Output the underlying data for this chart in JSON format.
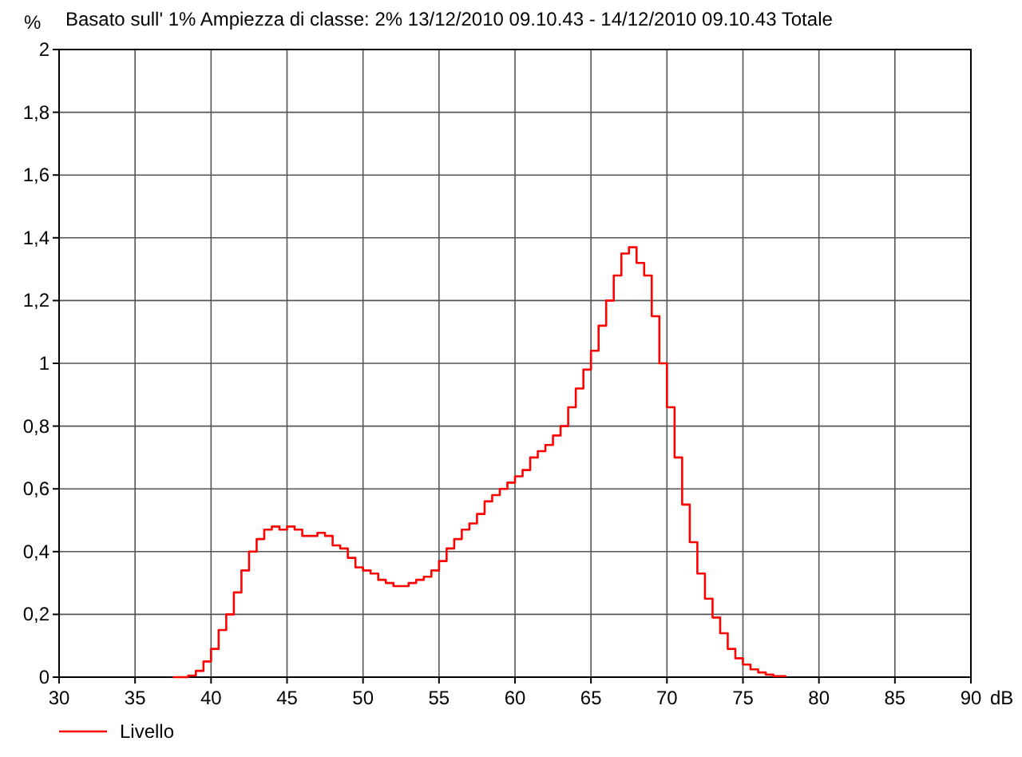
{
  "chart_data": {
    "type": "step",
    "title": "Basato sull' 1%   Ampiezza di classe: 2%  13/12/2010 09.10.43 - 14/12/2010 09.10.43  Totale",
    "xlabel": "dB",
    "ylabel": "%",
    "xlim": [
      30,
      90
    ],
    "xticks": [
      30,
      35,
      40,
      45,
      50,
      55,
      60,
      65,
      70,
      75,
      80,
      85,
      90
    ],
    "ylim": [
      0,
      2
    ],
    "yticks": [
      0,
      {
        "value": 0.2,
        "label": "0,2"
      },
      {
        "value": 0.4,
        "label": "0,4"
      },
      {
        "value": 0.6,
        "label": "0,6"
      },
      {
        "value": 0.8,
        "label": "0,8"
      },
      1,
      {
        "value": 1.2,
        "label": "1,2"
      },
      {
        "value": 1.4,
        "label": "1,4"
      },
      {
        "value": 1.6,
        "label": "1,6"
      },
      {
        "value": 1.8,
        "label": "1,8"
      },
      2
    ],
    "grid": true,
    "legend": "bottom left",
    "marker": "none",
    "line_style": "solid",
    "series": [
      {
        "name": "Livello",
        "color": "#ff0000",
        "x": [
          37.5,
          38.5,
          39,
          39.5,
          40,
          40.5,
          41,
          41.5,
          42,
          42.5,
          43,
          43.5,
          44,
          44.5,
          45,
          45.5,
          46,
          46.5,
          47,
          47.5,
          48,
          48.5,
          49,
          49.5,
          50,
          50.5,
          51,
          51.5,
          52,
          52.5,
          53,
          53.5,
          54,
          54.5,
          55,
          55.5,
          56,
          56.5,
          57,
          57.5,
          58,
          58.5,
          59,
          59.5,
          60,
          60.5,
          61,
          61.5,
          62,
          62.5,
          63,
          63.5,
          64,
          64.5,
          65,
          65.5,
          66,
          66.5,
          67,
          67.5,
          68,
          68.5,
          69,
          69.5,
          70,
          70.5,
          71,
          71.5,
          72,
          72.5,
          73,
          73.5,
          74,
          74.5,
          75,
          75.5,
          76,
          76.5,
          77,
          77.8
        ],
        "values": [
          0,
          0.005,
          0.02,
          0.05,
          0.09,
          0.15,
          0.2,
          0.27,
          0.34,
          0.4,
          0.44,
          0.47,
          0.48,
          0.47,
          0.48,
          0.47,
          0.45,
          0.45,
          0.46,
          0.45,
          0.42,
          0.41,
          0.38,
          0.35,
          0.34,
          0.33,
          0.31,
          0.3,
          0.29,
          0.29,
          0.3,
          0.31,
          0.32,
          0.34,
          0.37,
          0.41,
          0.44,
          0.47,
          0.49,
          0.52,
          0.56,
          0.58,
          0.6,
          0.62,
          0.64,
          0.66,
          0.7,
          0.72,
          0.74,
          0.77,
          0.8,
          0.86,
          0.92,
          0.98,
          1.04,
          1.12,
          1.2,
          1.28,
          1.35,
          1.37,
          1.32,
          1.28,
          1.15,
          1,
          0.86,
          0.7,
          0.55,
          0.43,
          0.33,
          0.25,
          0.19,
          0.14,
          0.09,
          0.06,
          0.04,
          0.025,
          0.015,
          0.008,
          0.003,
          0
        ]
      }
    ]
  }
}
